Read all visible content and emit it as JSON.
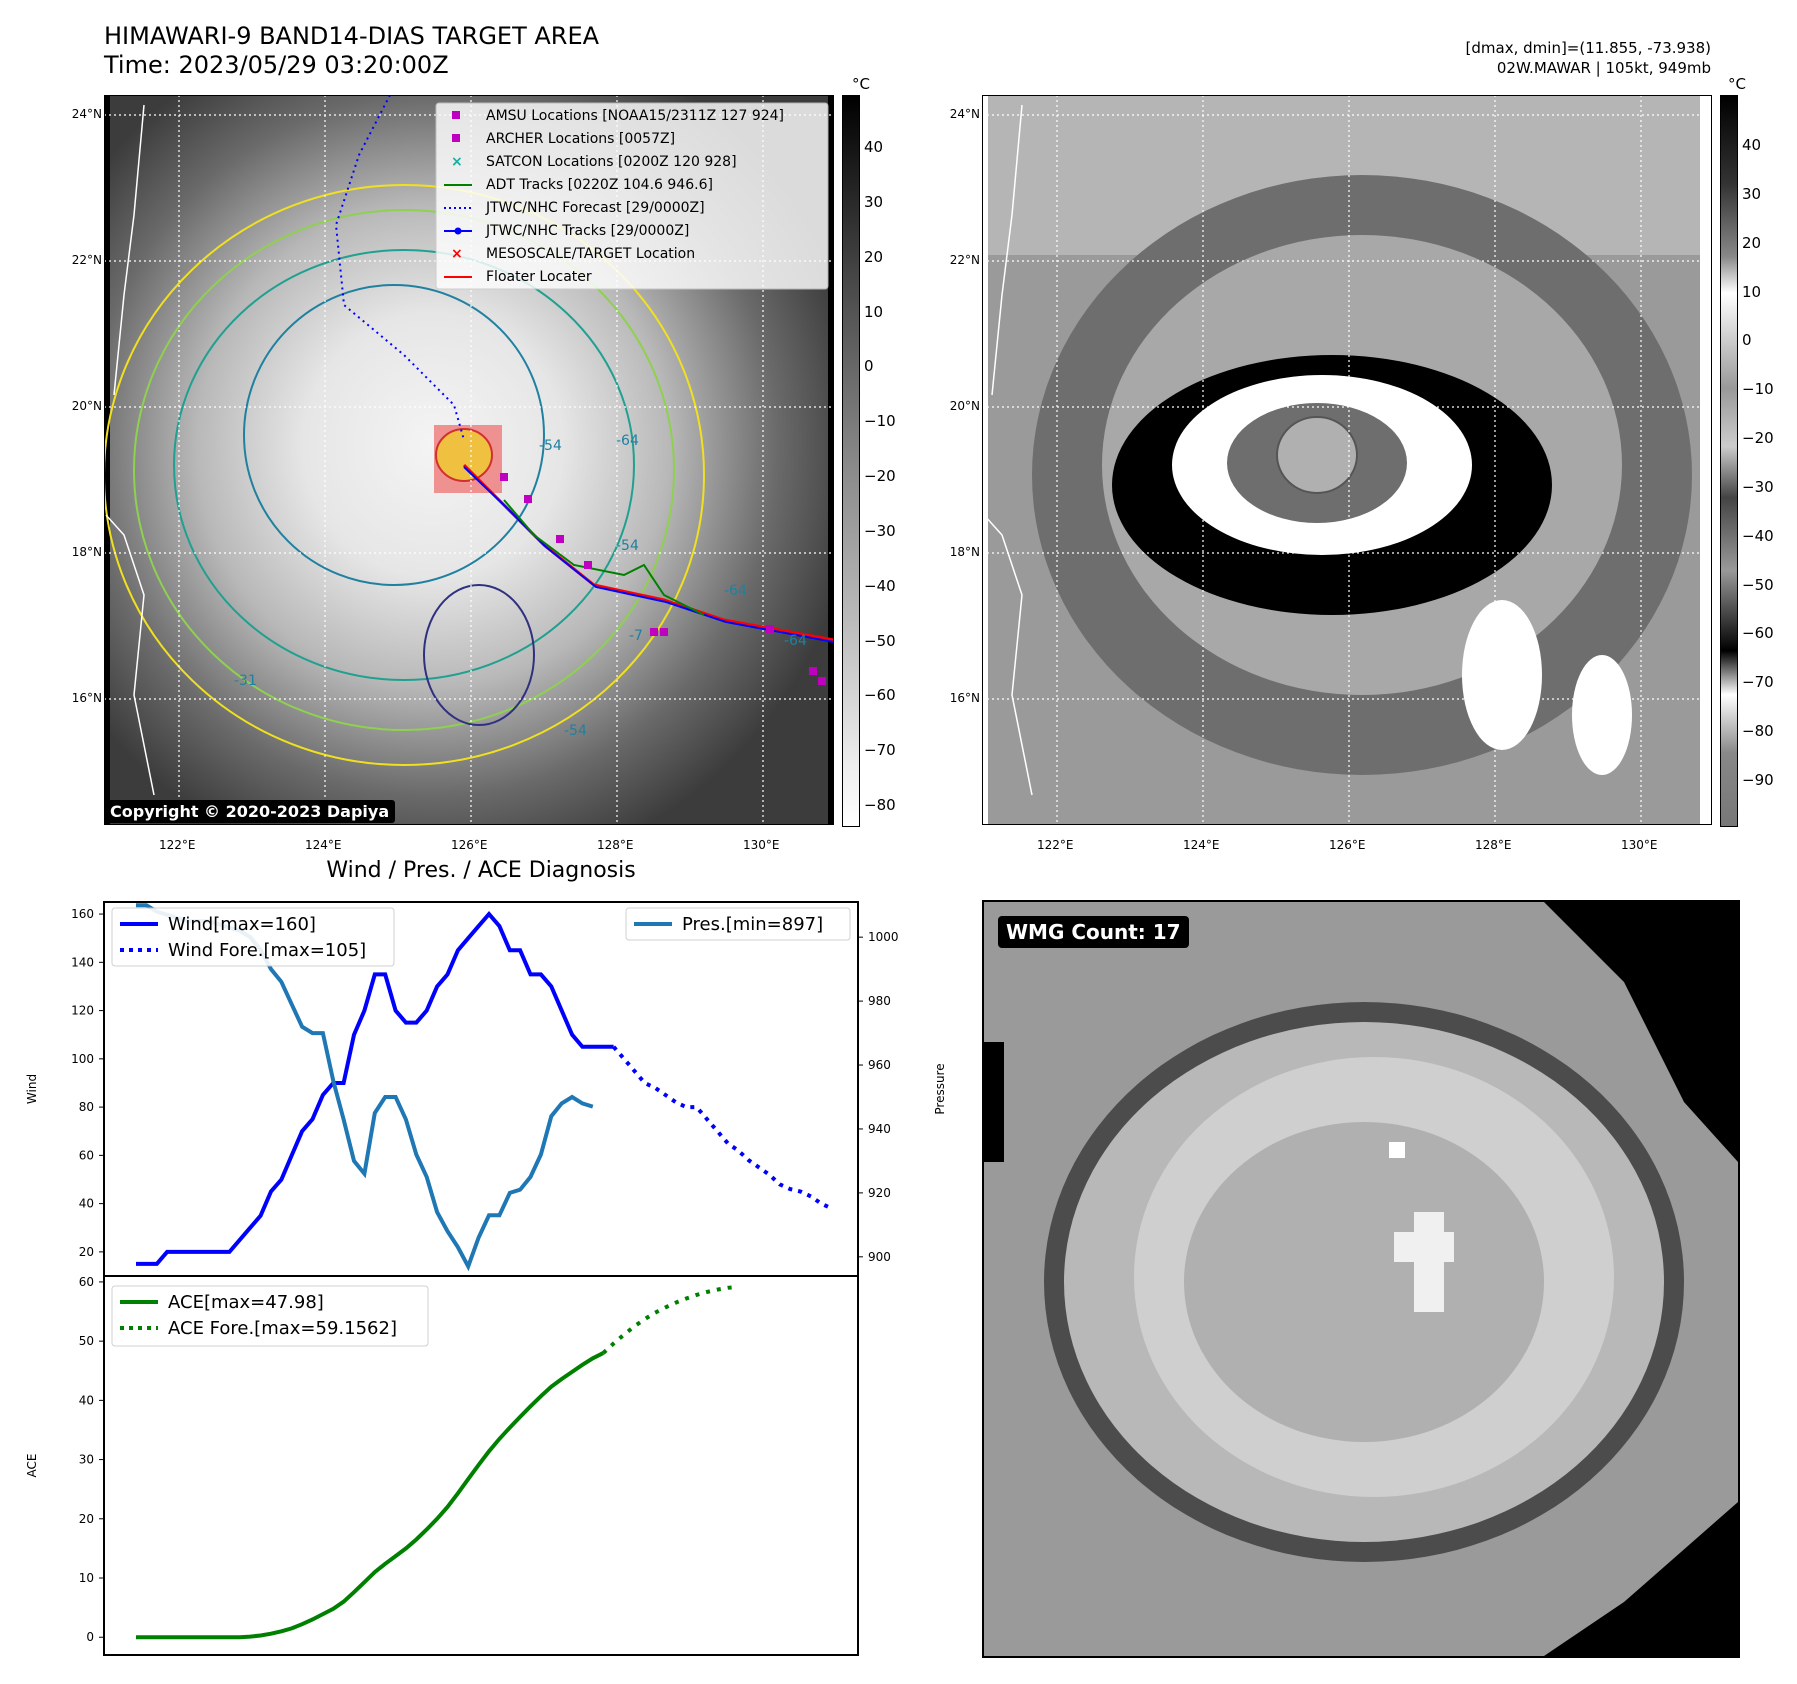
{
  "header": {
    "title_line1": "HIMAWARI-9 BAND14-DIAS TARGET AREA",
    "title_line2": "Time: 2023/05/29 03:20:00Z",
    "right_line1": "[dmax, dmin]=(11.855, -73.938)",
    "right_line2": "02W.MAWAR | 105kt, 949mb"
  },
  "map_left": {
    "lat_labels": [
      "24°N",
      "22°N",
      "20°N",
      "18°N",
      "16°N"
    ],
    "lon_labels": [
      "122°E",
      "124°E",
      "126°E",
      "128°E",
      "130°E"
    ],
    "colorbar_unit": "°C",
    "colorbar_ticks": [
      "40",
      "30",
      "20",
      "10",
      "0",
      "−10",
      "−20",
      "−30",
      "−40",
      "−50",
      "−60",
      "−70",
      "−80"
    ],
    "copyright": "Copyright © 2020-2023 Dapiya",
    "contour_labels": [
      "-54",
      "-64",
      "-54",
      "-64",
      "-31",
      "-64",
      "-54",
      "-7"
    ],
    "legend": [
      {
        "label": "AMSU Locations [NOAA15/2311Z 127 924]",
        "color": "#c000c0",
        "kind": "square"
      },
      {
        "label": "ARCHER Locations [0057Z]",
        "color": "#c000c0",
        "kind": "square"
      },
      {
        "label": "SATCON Locations [0200Z 120 928]",
        "color": "#10b0a0",
        "kind": "x"
      },
      {
        "label": "ADT Tracks [0220Z 104.6 946.6]",
        "color": "#008000",
        "kind": "line"
      },
      {
        "label": "JTWC/NHC Forecast [29/0000Z]",
        "color": "#0000ff",
        "kind": "dotted"
      },
      {
        "label": "JTWC/NHC Tracks [29/0000Z]",
        "color": "#0000ff",
        "kind": "line-dot"
      },
      {
        "label": "MESOSCALE/TARGET Location",
        "color": "#ff0000",
        "kind": "x"
      },
      {
        "label": "Floater Locater",
        "color": "#ff0000",
        "kind": "line"
      }
    ]
  },
  "map_right": {
    "lat_labels": [
      "24°N",
      "22°N",
      "20°N",
      "18°N",
      "16°N"
    ],
    "lon_labels": [
      "122°E",
      "124°E",
      "126°E",
      "128°E",
      "130°E"
    ],
    "colorbar_unit": "°C",
    "colorbar_ticks": [
      "40",
      "30",
      "20",
      "10",
      "0",
      "−10",
      "−20",
      "−30",
      "−40",
      "−50",
      "−60",
      "−70",
      "−80",
      "−90"
    ]
  },
  "wmg": {
    "label": "WMG Count: 17"
  },
  "chart_data": [
    {
      "type": "line",
      "title": "Wind / Pres. / ACE Diagnosis",
      "ylabel": "Wind",
      "y2label": "Pressure",
      "ylim": [
        10,
        165
      ],
      "y2lim": [
        894,
        1011
      ],
      "yticks": [
        20,
        40,
        60,
        80,
        100,
        120,
        140,
        160
      ],
      "y2ticks": [
        900,
        920,
        940,
        960,
        980,
        1000
      ],
      "legend_left": [
        "Wind[max=160]",
        "Wind Fore.[max=105]"
      ],
      "legend_right": [
        "Pres.[min=897]"
      ],
      "series": [
        {
          "name": "Wind[max=160]",
          "color": "#0000ff",
          "style": "solid",
          "axis": "left",
          "values": [
            15,
            15,
            15,
            20,
            20,
            20,
            20,
            20,
            20,
            20,
            25,
            30,
            35,
            45,
            50,
            60,
            70,
            75,
            85,
            90,
            90,
            110,
            120,
            135,
            135,
            120,
            115,
            115,
            120,
            130,
            135,
            145,
            150,
            155,
            160,
            155,
            145,
            145,
            135,
            135,
            130,
            120,
            110,
            105,
            105,
            105,
            105
          ]
        },
        {
          "name": "Wind Fore.[max=105]",
          "color": "#0000ff",
          "style": "dotted",
          "axis": "left",
          "values": [
            105,
            100,
            95,
            90,
            88,
            85,
            82,
            80,
            80,
            75,
            70,
            65,
            62,
            58,
            55,
            52,
            48,
            46,
            45,
            43,
            40,
            38
          ]
        },
        {
          "name": "Pres.[min=897]",
          "color": "#1f77b4",
          "style": "solid",
          "axis": "right",
          "values": [
            1010,
            1010,
            1008,
            1007,
            1006,
            1005,
            1005,
            1005,
            1004,
            1003,
            1002,
            1000,
            996,
            990,
            986,
            979,
            972,
            970,
            970,
            955,
            943,
            930,
            926,
            945,
            950,
            950,
            943,
            932,
            925,
            914,
            908,
            903,
            897,
            906,
            913,
            913,
            920,
            921,
            925,
            932,
            944,
            948,
            950,
            948,
            947
          ]
        }
      ]
    },
    {
      "type": "line",
      "ylabel": "ACE",
      "ylim": [
        -3,
        61
      ],
      "yticks": [
        0,
        10,
        20,
        30,
        40,
        50,
        60
      ],
      "legend": [
        "ACE[max=47.98]",
        "ACE Fore.[max=59.1562]"
      ],
      "series": [
        {
          "name": "ACE[max=47.98]",
          "color": "#008000",
          "style": "solid",
          "values": [
            0,
            0,
            0,
            0,
            0,
            0,
            0,
            0,
            0,
            0,
            0,
            0.1,
            0.3,
            0.6,
            1.0,
            1.5,
            2.2,
            3.0,
            3.9,
            4.8,
            6.0,
            7.6,
            9.3,
            11.0,
            12.4,
            13.7,
            15.0,
            16.5,
            18.2,
            20.0,
            22.0,
            24.3,
            26.7,
            29.1,
            31.4,
            33.5,
            35.4,
            37.2,
            39.0,
            40.7,
            42.3,
            43.6,
            44.8,
            46.0,
            47.1,
            47.98
          ]
        },
        {
          "name": "ACE Fore.[max=59.1562]",
          "color": "#008000",
          "style": "dotted",
          "values": [
            47.98,
            49.6,
            51.1,
            52.5,
            53.7,
            54.8,
            55.7,
            56.5,
            57.2,
            57.8,
            58.3,
            58.7,
            59.0,
            59.1562
          ]
        }
      ]
    }
  ]
}
